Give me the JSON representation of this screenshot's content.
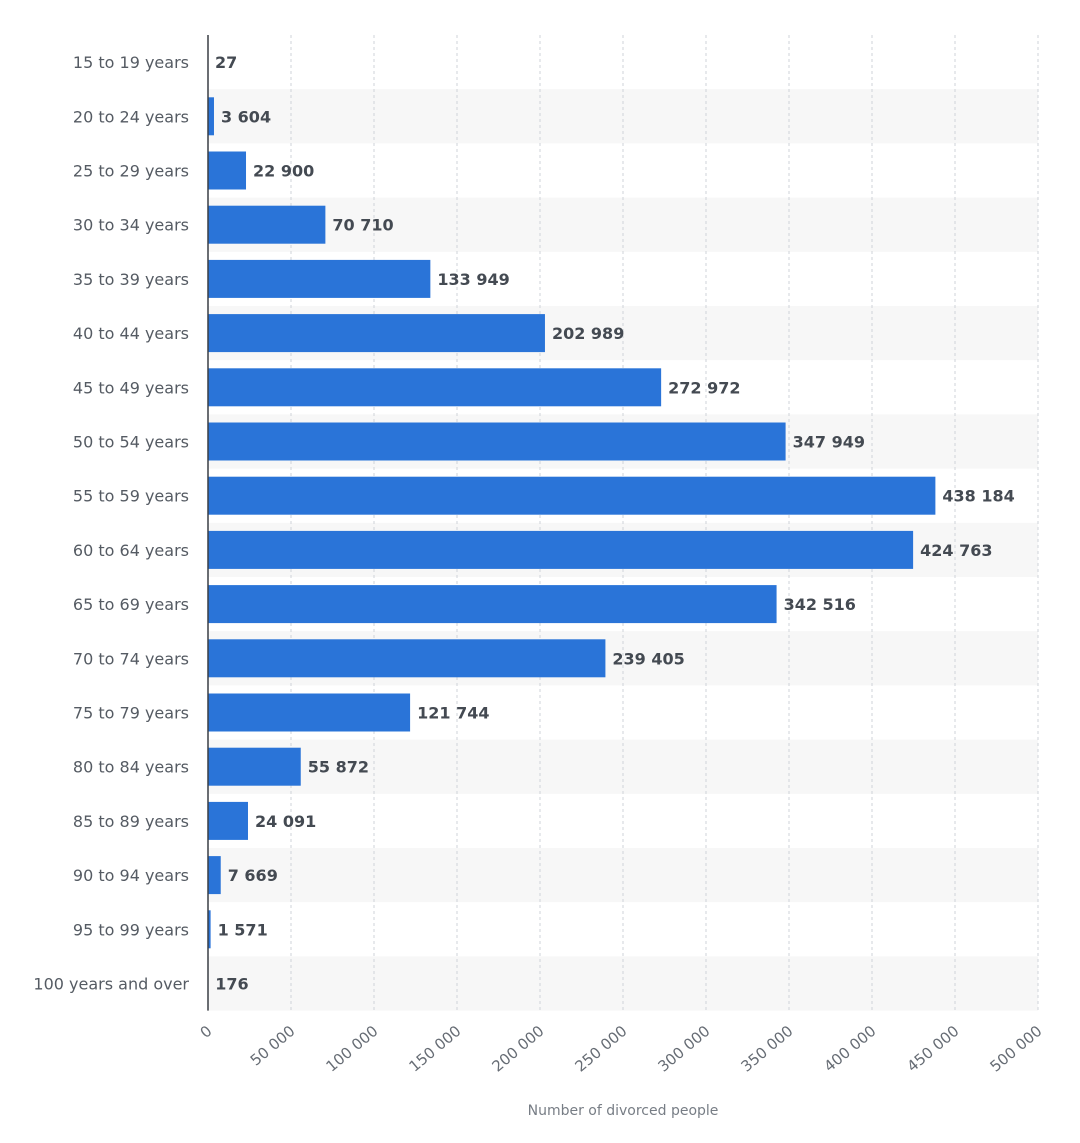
{
  "chart_data": {
    "type": "bar",
    "orientation": "horizontal",
    "title": "",
    "xlabel": "Number of divorced people",
    "ylabel": "",
    "xlim": [
      0,
      500000
    ],
    "x_ticks": [
      0,
      50000,
      100000,
      150000,
      200000,
      250000,
      300000,
      350000,
      400000,
      450000,
      500000
    ],
    "x_tick_labels": [
      "0",
      "50 000",
      "100 000",
      "150 000",
      "200 000",
      "250 000",
      "300 000",
      "350 000",
      "400 000",
      "450 000",
      "500 000"
    ],
    "grid": true,
    "bar_color": "#2a74d8",
    "categories": [
      "15 to 19 years",
      "20 to 24 years",
      "25 to 29 years",
      "30 to 34 years",
      "35 to 39 years",
      "40 to 44 years",
      "45 to 49 years",
      "50 to 54 years",
      "55 to 59 years",
      "60 to 64 years",
      "65 to 69 years",
      "70 to 74 years",
      "75 to 79 years",
      "80 to 84 years",
      "85 to 89 years",
      "90 to 94 years",
      "95 to 99 years",
      "100 years and over"
    ],
    "values": [
      27,
      3604,
      22900,
      70710,
      133949,
      202989,
      272972,
      347949,
      438184,
      424763,
      342516,
      239405,
      121744,
      55872,
      24091,
      7669,
      1571,
      176
    ],
    "value_labels": [
      "27",
      "3 604",
      "22 900",
      "70 710",
      "133 949",
      "202 989",
      "272 972",
      "347 949",
      "438 184",
      "424 763",
      "342 516",
      "239 405",
      "121 744",
      "55 872",
      "24 091",
      "7 669",
      "1 571",
      "176"
    ]
  }
}
